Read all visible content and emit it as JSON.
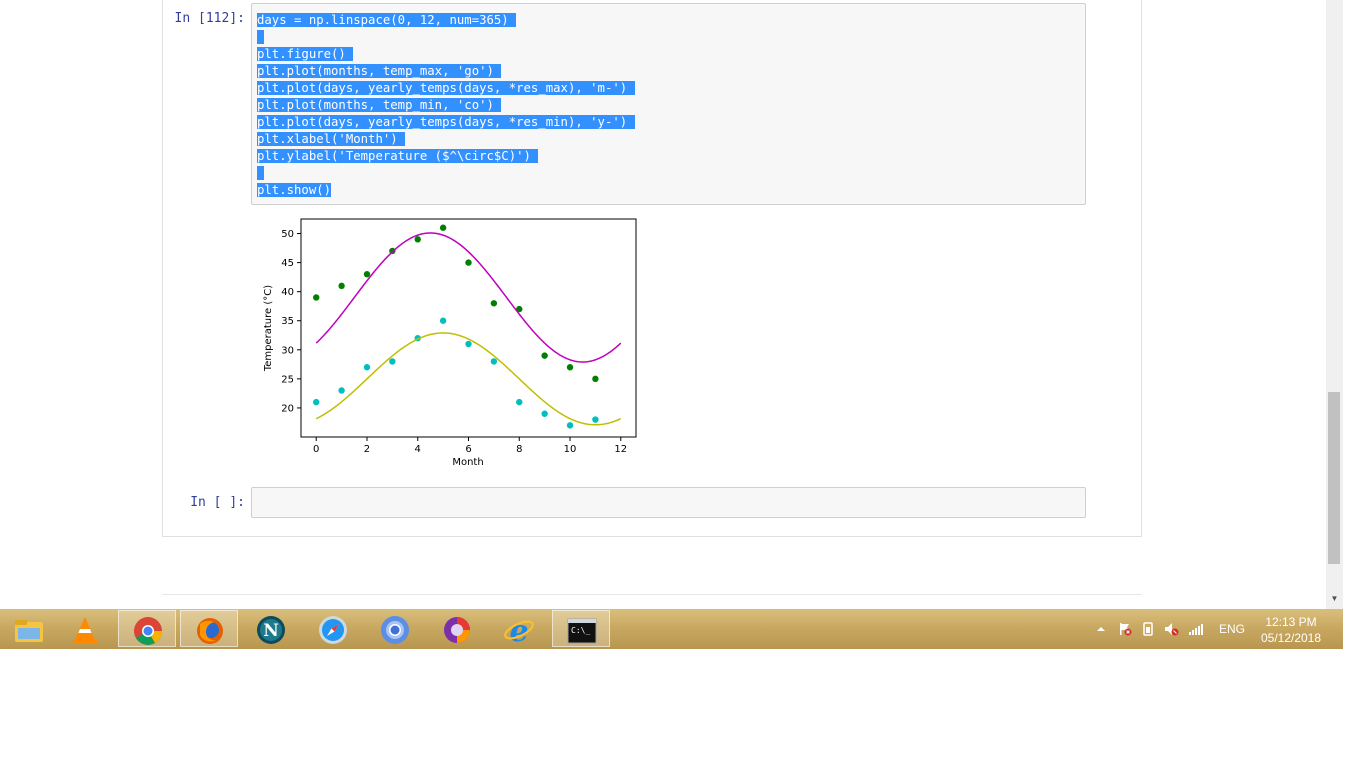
{
  "notebook": {
    "cells": [
      {
        "prompt": "In [112]:",
        "code_lines": [
          "days = np.linspace(0, 12, num=365) ",
          " ",
          "plt.figure() ",
          "plt.plot(months, temp_max, 'go') ",
          "plt.plot(days, yearly_temps(days, *res_max), 'm-') ",
          "plt.plot(months, temp_min, 'co') ",
          "plt.plot(days, yearly_temps(days, *res_min), 'y-') ",
          "plt.xlabel('Month') ",
          "plt.ylabel('Temperature ($^\\circ$C)') ",
          " ",
          "plt.show()"
        ]
      },
      {
        "prompt": "In [ ]:",
        "code_lines": []
      }
    ]
  },
  "chart_data": {
    "type": "scatter",
    "xlabel": "Month",
    "ylabel": "Temperature (°C)",
    "xlim": [
      -0.6,
      12.6
    ],
    "ylim": [
      15,
      52.5
    ],
    "xticks": [
      0,
      2,
      4,
      6,
      8,
      10,
      12
    ],
    "yticks": [
      20,
      25,
      30,
      35,
      40,
      45,
      50
    ],
    "grid": false,
    "series": [
      {
        "style": "points",
        "color": "#008000",
        "x": [
          0,
          1,
          2,
          3,
          4,
          5,
          6,
          7,
          8,
          9,
          10,
          11
        ],
        "y": [
          39,
          41,
          43,
          47,
          49,
          51,
          45,
          38,
          37,
          29,
          27,
          25
        ]
      },
      {
        "style": "line",
        "color": "#bf00bf",
        "fit": {
          "mean": 39.0,
          "amp": 11.1,
          "peak_month": 4.5,
          "period": 12
        }
      },
      {
        "style": "points",
        "color": "#00bfbf",
        "x": [
          0,
          1,
          2,
          3,
          4,
          5,
          6,
          7,
          8,
          9,
          10,
          11
        ],
        "y": [
          21,
          23,
          27,
          28,
          32,
          35,
          31,
          28,
          21,
          19,
          17,
          18
        ]
      },
      {
        "style": "line",
        "color": "#bfbf00",
        "fit": {
          "mean": 25.0,
          "amp": 7.9,
          "peak_month": 5.0,
          "period": 12
        }
      }
    ]
  },
  "taskbar": {
    "apps": [
      {
        "name": "file-explorer-icon",
        "active": false
      },
      {
        "name": "vlc-icon",
        "active": false
      },
      {
        "name": "chrome-icon",
        "active": true
      },
      {
        "name": "firefox-icon",
        "active": true
      },
      {
        "name": "netscape-icon",
        "active": false
      },
      {
        "name": "safari-icon",
        "active": false
      },
      {
        "name": "chromium-icon",
        "active": false
      },
      {
        "name": "opera-icon",
        "active": false
      },
      {
        "name": "internet-explorer-icon",
        "active": false
      },
      {
        "name": "command-prompt-icon",
        "active": true
      }
    ],
    "tray": {
      "lang": "ENG",
      "time": "12:13 PM",
      "date": "05/12/2018"
    }
  }
}
